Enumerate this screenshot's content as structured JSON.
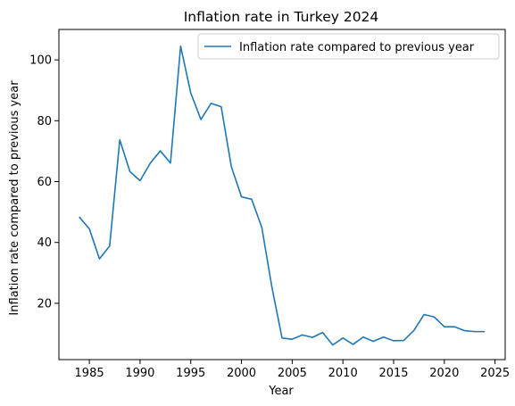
{
  "chart_data": {
    "type": "line",
    "title": "Inflation rate in Turkey 2024",
    "xlabel": "Year",
    "ylabel": "Inflation rate compared to previous year",
    "xlim": [
      1982,
      2026
    ],
    "ylim": [
      1.5,
      110
    ],
    "xticks": [
      "1985",
      "1990",
      "1995",
      "2000",
      "2005",
      "2010",
      "2015",
      "2020",
      "2025"
    ],
    "yticks": [
      "20",
      "40",
      "60",
      "80",
      "100"
    ],
    "grid": false,
    "legend_position": "top-right",
    "colors": {
      "line": "#1f77b4"
    },
    "series": [
      {
        "name": "Inflation rate compared to previous year",
        "x": [
          1984,
          1985,
          1986,
          1987,
          1988,
          1989,
          1990,
          1991,
          1992,
          1993,
          1994,
          1995,
          1996,
          1997,
          1998,
          1999,
          2000,
          2001,
          2002,
          2003,
          2004,
          2005,
          2006,
          2007,
          2008,
          2009,
          2010,
          2011,
          2012,
          2013,
          2014,
          2015,
          2016,
          2017,
          2018,
          2019,
          2020,
          2021,
          2022,
          2023,
          2024
        ],
        "values": [
          48.4,
          44.5,
          34.6,
          38.8,
          73.7,
          63.3,
          60.3,
          66.0,
          70.1,
          66.1,
          104.5,
          89.1,
          80.4,
          85.7,
          84.6,
          64.9,
          55.0,
          54.2,
          45.0,
          25.3,
          8.6,
          8.2,
          9.6,
          8.8,
          10.4,
          6.3,
          8.6,
          6.5,
          8.9,
          7.5,
          8.9,
          7.7,
          7.8,
          11.1,
          16.3,
          15.5,
          12.3,
          12.3,
          11.0,
          10.7,
          10.7
        ]
      }
    ]
  }
}
